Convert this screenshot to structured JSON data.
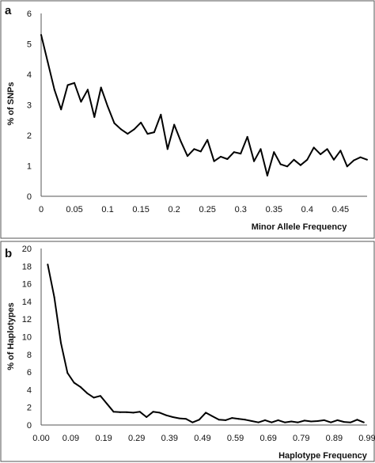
{
  "chart_data": [
    {
      "type": "line",
      "panel_label": "a",
      "xlabel": "Minor Allele Frequency",
      "ylabel": "% of SNPs",
      "xlim": [
        0,
        0.49
      ],
      "ylim": [
        0,
        6
      ],
      "x_ticks": [
        0,
        0.05,
        0.1,
        0.15,
        0.2,
        0.25,
        0.3,
        0.35,
        0.4,
        0.45
      ],
      "x_tick_labels": [
        "0",
        "0.05",
        "0.1",
        "0.15",
        "0.2",
        "0.25",
        "0.3",
        "0.35",
        "0.4",
        "0.45"
      ],
      "y_ticks": [
        0,
        1,
        2,
        3,
        4,
        5,
        6
      ],
      "y_tick_labels": [
        "0",
        "1",
        "2",
        "3",
        "4",
        "5",
        "6"
      ],
      "grid": false,
      "legend": "none",
      "series": [
        {
          "x": [
            0.0,
            0.01,
            0.02,
            0.03,
            0.04,
            0.05,
            0.06,
            0.07,
            0.08,
            0.09,
            0.1,
            0.11,
            0.12,
            0.13,
            0.14,
            0.15,
            0.16,
            0.17,
            0.18,
            0.19,
            0.2,
            0.21,
            0.22,
            0.23,
            0.24,
            0.25,
            0.26,
            0.27,
            0.28,
            0.29,
            0.3,
            0.31,
            0.32,
            0.33,
            0.34,
            0.35,
            0.36,
            0.37,
            0.38,
            0.39,
            0.4,
            0.41,
            0.42,
            0.43,
            0.44,
            0.45,
            0.46,
            0.47,
            0.48,
            0.49
          ],
          "values": [
            5.3,
            4.4,
            3.5,
            2.85,
            3.65,
            3.72,
            3.1,
            3.5,
            2.6,
            3.57,
            2.95,
            2.4,
            2.2,
            2.05,
            2.2,
            2.42,
            2.05,
            2.1,
            2.68,
            1.55,
            2.35,
            1.8,
            1.32,
            1.55,
            1.47,
            1.85,
            1.15,
            1.3,
            1.22,
            1.45,
            1.4,
            1.95,
            1.15,
            1.55,
            0.68,
            1.45,
            1.05,
            0.98,
            1.2,
            1.02,
            1.2,
            1.6,
            1.38,
            1.55,
            1.2,
            1.5,
            0.98,
            1.18,
            1.28,
            1.2
          ]
        }
      ]
    },
    {
      "type": "line",
      "panel_label": "b",
      "xlabel": "Haplotype Frequency",
      "ylabel": "% of Haplotypes",
      "xlim": [
        0,
        0.99
      ],
      "ylim": [
        0,
        20
      ],
      "x_ticks": [
        0.0,
        0.09,
        0.19,
        0.29,
        0.39,
        0.49,
        0.59,
        0.69,
        0.79,
        0.89,
        0.99
      ],
      "x_tick_labels": [
        "0.00",
        "0.09",
        "0.19",
        "0.29",
        "0.39",
        "0.49",
        "0.59",
        "0.69",
        "0.79",
        "0.89",
        "0.99"
      ],
      "y_ticks": [
        0,
        2,
        4,
        6,
        8,
        10,
        12,
        14,
        16,
        18,
        20
      ],
      "y_tick_labels": [
        "0",
        "2",
        "4",
        "6",
        "8",
        "10",
        "12",
        "14",
        "16",
        "18",
        "20"
      ],
      "grid": false,
      "legend": "none",
      "series": [
        {
          "x": [
            0.02,
            0.04,
            0.06,
            0.08,
            0.1,
            0.12,
            0.14,
            0.16,
            0.18,
            0.2,
            0.22,
            0.24,
            0.26,
            0.28,
            0.3,
            0.32,
            0.34,
            0.36,
            0.38,
            0.4,
            0.42,
            0.44,
            0.46,
            0.48,
            0.5,
            0.52,
            0.54,
            0.56,
            0.58,
            0.6,
            0.62,
            0.64,
            0.66,
            0.68,
            0.7,
            0.72,
            0.74,
            0.76,
            0.78,
            0.8,
            0.82,
            0.84,
            0.86,
            0.88,
            0.9,
            0.92,
            0.94,
            0.96,
            0.98
          ],
          "values": [
            18.2,
            14.5,
            9.3,
            5.9,
            4.8,
            4.3,
            3.6,
            3.1,
            3.3,
            2.4,
            1.5,
            1.45,
            1.45,
            1.4,
            1.5,
            0.9,
            1.5,
            1.4,
            1.1,
            0.9,
            0.75,
            0.7,
            0.3,
            0.6,
            1.4,
            1.0,
            0.6,
            0.55,
            0.8,
            0.7,
            0.6,
            0.45,
            0.3,
            0.55,
            0.3,
            0.55,
            0.3,
            0.4,
            0.3,
            0.5,
            0.4,
            0.45,
            0.55,
            0.3,
            0.55,
            0.35,
            0.3,
            0.6,
            0.3
          ]
        }
      ]
    }
  ]
}
